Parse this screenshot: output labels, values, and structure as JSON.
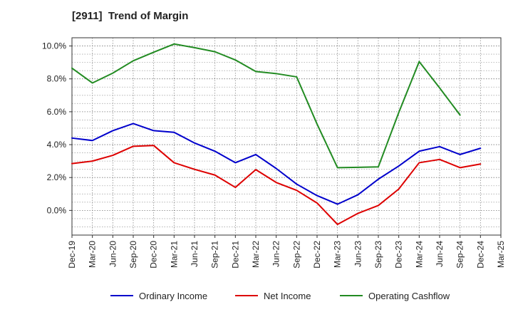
{
  "chart_data": {
    "type": "line",
    "title": "[2911]  Trend of Margin",
    "xlabel": "",
    "ylabel": "",
    "ylim": [
      -1.5,
      10.5
    ],
    "yticks": [
      0,
      2,
      4,
      6,
      8,
      10
    ],
    "ytick_labels": [
      "0.0%",
      "2.0%",
      "4.0%",
      "6.0%",
      "8.0%",
      "10.0%"
    ],
    "categories": [
      "Dec-19",
      "Mar-20",
      "Jun-20",
      "Sep-20",
      "Dec-20",
      "Mar-21",
      "Jun-21",
      "Sep-21",
      "Dec-21",
      "Mar-22",
      "Jun-22",
      "Sep-22",
      "Dec-22",
      "Mar-23",
      "Jun-23",
      "Sep-23",
      "Dec-23",
      "Mar-24",
      "Jun-24",
      "Sep-24",
      "Dec-24",
      "Mar-25"
    ],
    "grid": true,
    "legend_position": "bottom",
    "series": [
      {
        "name": "Ordinary Income",
        "color": "#0000cc",
        "values": [
          4.4,
          4.25,
          4.85,
          5.28,
          4.85,
          4.75,
          4.1,
          3.6,
          2.9,
          3.4,
          2.55,
          1.6,
          0.9,
          0.38,
          0.95,
          1.9,
          2.7,
          3.6,
          3.88,
          3.4,
          3.78,
          null
        ]
      },
      {
        "name": "Net Income",
        "color": "#dd0000",
        "values": [
          2.85,
          3.0,
          3.35,
          3.9,
          3.95,
          2.9,
          2.5,
          2.15,
          1.4,
          2.48,
          1.7,
          1.22,
          0.45,
          -0.85,
          -0.18,
          0.3,
          1.3,
          2.9,
          3.1,
          2.6,
          2.82,
          null
        ]
      },
      {
        "name": "Operating Cashflow",
        "color": "#228b22",
        "values": [
          8.65,
          7.75,
          8.35,
          9.1,
          9.62,
          10.12,
          9.9,
          9.65,
          9.15,
          8.45,
          8.32,
          8.12,
          5.25,
          2.6,
          2.62,
          2.65,
          5.95,
          9.05,
          7.45,
          5.8,
          null,
          null
        ]
      }
    ]
  }
}
